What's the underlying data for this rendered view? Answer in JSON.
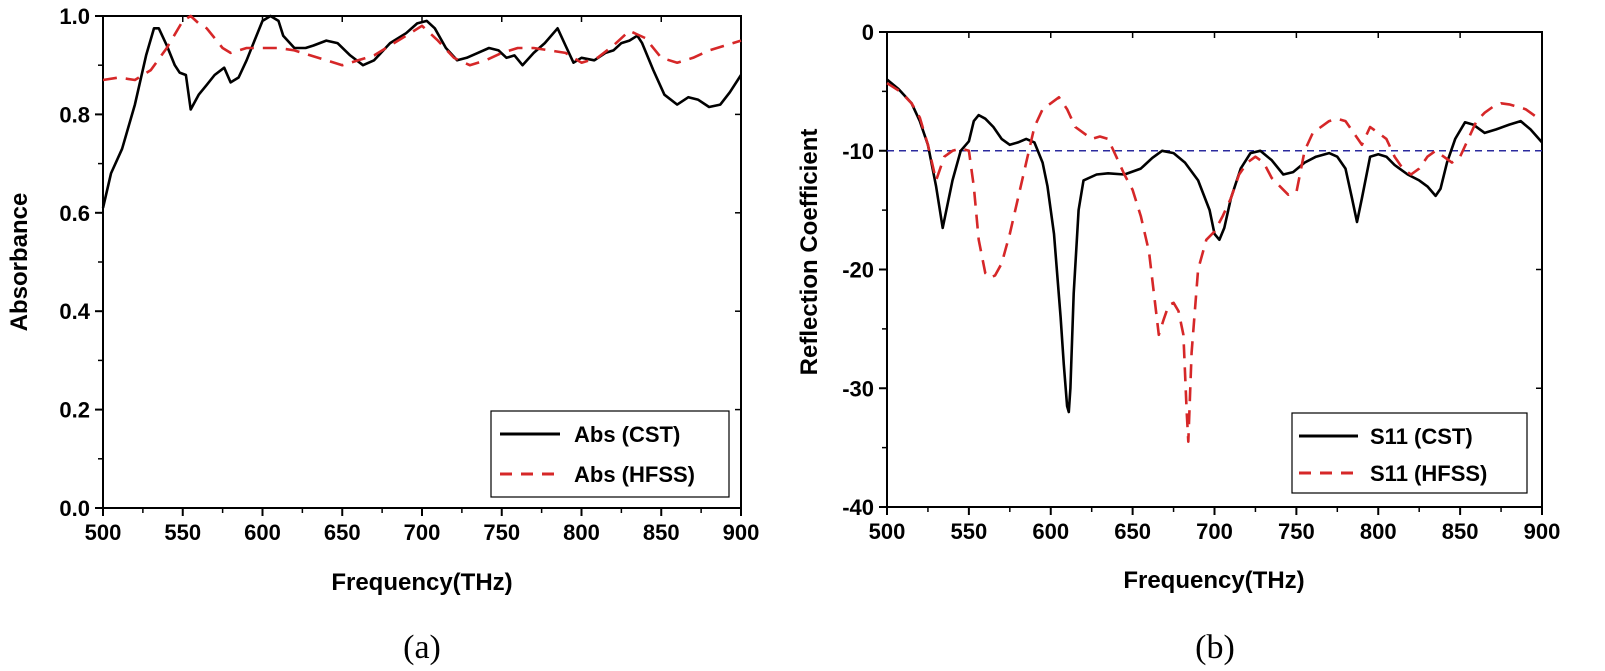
{
  "colors": {
    "cst": "#000000",
    "hfss": "#d62728",
    "threshold": "#2b2b9e"
  },
  "chart_data": [
    {
      "type": "line",
      "caption": "(a)",
      "xlabel": "Frequency(THz)",
      "ylabel": "Absorbance",
      "xlim": [
        500,
        900
      ],
      "ylim": [
        0.0,
        1.0
      ],
      "x_ticks": [
        500,
        550,
        600,
        650,
        700,
        750,
        800,
        850,
        900
      ],
      "x_tick_labels": [
        "500",
        "550",
        "600",
        "650",
        "700",
        "750",
        "800",
        "850",
        "900"
      ],
      "y_ticks": [
        0.0,
        0.2,
        0.4,
        0.6,
        0.8,
        1.0
      ],
      "y_tick_labels": [
        "0.0",
        "0.2",
        "0.4",
        "0.6",
        "0.8",
        "1.0"
      ],
      "legend_position": "bottom-right",
      "series": [
        {
          "name": "Abs (CST)",
          "style": "solid",
          "color_key": "cst",
          "x": [
            500,
            505,
            512,
            520,
            527,
            532,
            535,
            540,
            545,
            548,
            552,
            555,
            560,
            565,
            570,
            576,
            580,
            585,
            590,
            595,
            600,
            605,
            610,
            613,
            620,
            627,
            632,
            640,
            647,
            655,
            663,
            670,
            680,
            690,
            697,
            703,
            708,
            715,
            722,
            728,
            735,
            742,
            748,
            753,
            758,
            763,
            770,
            777,
            785,
            790,
            795,
            800,
            808,
            815,
            820,
            825,
            830,
            835,
            838,
            845,
            852,
            860,
            867,
            873,
            880,
            887,
            893,
            900
          ],
          "y": [
            0.61,
            0.68,
            0.73,
            0.82,
            0.92,
            0.975,
            0.975,
            0.94,
            0.9,
            0.885,
            0.88,
            0.81,
            0.84,
            0.86,
            0.88,
            0.895,
            0.865,
            0.875,
            0.91,
            0.95,
            0.99,
            1.0,
            0.99,
            0.96,
            0.935,
            0.935,
            0.94,
            0.95,
            0.945,
            0.92,
            0.9,
            0.91,
            0.945,
            0.965,
            0.985,
            0.99,
            0.975,
            0.935,
            0.91,
            0.915,
            0.925,
            0.935,
            0.93,
            0.915,
            0.92,
            0.9,
            0.925,
            0.945,
            0.975,
            0.94,
            0.905,
            0.915,
            0.91,
            0.925,
            0.93,
            0.945,
            0.95,
            0.96,
            0.945,
            0.89,
            0.84,
            0.82,
            0.835,
            0.83,
            0.815,
            0.82,
            0.845,
            0.88
          ]
        },
        {
          "name": "Abs (HFSS)",
          "style": "dashed",
          "color_key": "hfss",
          "x": [
            500,
            510,
            520,
            530,
            540,
            550,
            555,
            560,
            565,
            570,
            575,
            580,
            590,
            600,
            610,
            620,
            630,
            640,
            650,
            660,
            670,
            680,
            690,
            700,
            710,
            720,
            730,
            740,
            750,
            760,
            770,
            780,
            790,
            800,
            810,
            820,
            830,
            840,
            850,
            860,
            870,
            880,
            890,
            900
          ],
          "y": [
            0.87,
            0.875,
            0.87,
            0.89,
            0.935,
            0.99,
            1.0,
            0.985,
            0.975,
            0.955,
            0.935,
            0.925,
            0.935,
            0.935,
            0.935,
            0.93,
            0.92,
            0.91,
            0.9,
            0.91,
            0.92,
            0.94,
            0.96,
            0.98,
            0.95,
            0.915,
            0.9,
            0.91,
            0.925,
            0.935,
            0.935,
            0.93,
            0.925,
            0.905,
            0.915,
            0.94,
            0.97,
            0.955,
            0.915,
            0.905,
            0.915,
            0.93,
            0.94,
            0.95
          ]
        }
      ]
    },
    {
      "type": "line",
      "caption": "(b)",
      "xlabel": "Frequency(THz)",
      "ylabel": "Reflection Coefficient",
      "xlim": [
        500,
        900
      ],
      "ylim": [
        -40,
        0
      ],
      "x_ticks": [
        500,
        550,
        600,
        650,
        700,
        750,
        800,
        850,
        900
      ],
      "x_tick_labels": [
        "500",
        "550",
        "600",
        "650",
        "700",
        "750",
        "800",
        "850",
        "900"
      ],
      "y_ticks": [
        -40,
        -30,
        -20,
        -10,
        0
      ],
      "y_tick_labels": [
        "-40",
        "-30",
        "-20",
        "-10",
        "0"
      ],
      "reference_line": {
        "y": -10,
        "style": "dashed",
        "color_key": "threshold"
      },
      "legend_position": "bottom-right",
      "series": [
        {
          "name": "S11 (CST)",
          "style": "solid",
          "color_key": "cst",
          "x": [
            500,
            507,
            515,
            520,
            525,
            530,
            534,
            540,
            545,
            550,
            553,
            556,
            560,
            565,
            570,
            575,
            580,
            585,
            590,
            595,
            598,
            602,
            606,
            608,
            610,
            611,
            612,
            614,
            617,
            620,
            628,
            635,
            645,
            655,
            662,
            668,
            675,
            682,
            690,
            697,
            700,
            703,
            706,
            710,
            716,
            722,
            728,
            735,
            742,
            748,
            755,
            762,
            770,
            775,
            780,
            784,
            787,
            790,
            795,
            800,
            805,
            810,
            818,
            825,
            830,
            835,
            838,
            842,
            847,
            853,
            858,
            865,
            872,
            880,
            887,
            893,
            900
          ],
          "y": [
            -4,
            -4.8,
            -6,
            -7.5,
            -9.5,
            -13,
            -16.5,
            -12.5,
            -10,
            -9.2,
            -7.5,
            -7,
            -7.3,
            -8,
            -9,
            -9.5,
            -9.3,
            -9,
            -9.3,
            -11,
            -13,
            -17,
            -24,
            -28,
            -31.5,
            -32,
            -30,
            -22,
            -15,
            -12.5,
            -12,
            -11.9,
            -12,
            -11.5,
            -10.6,
            -10,
            -10.2,
            -11,
            -12.5,
            -15,
            -17,
            -17.5,
            -16.5,
            -14,
            -11.5,
            -10.2,
            -10,
            -10.8,
            -12,
            -11.8,
            -11,
            -10.5,
            -10.2,
            -10.5,
            -11.5,
            -14,
            -16,
            -14,
            -10.5,
            -10.3,
            -10.5,
            -11.2,
            -12,
            -12.5,
            -13,
            -13.8,
            -13.2,
            -11,
            -9,
            -7.6,
            -7.8,
            -8.5,
            -8.2,
            -7.8,
            -7.5,
            -8.2,
            -9.3
          ]
        },
        {
          "name": "S11 (HFSS)",
          "style": "dashed",
          "color_key": "hfss",
          "x": [
            500,
            508,
            515,
            520,
            525,
            530,
            535,
            540,
            545,
            550,
            553,
            556,
            560,
            563,
            566,
            570,
            575,
            580,
            585,
            590,
            595,
            600,
            605,
            610,
            615,
            620,
            625,
            630,
            635,
            640,
            645,
            650,
            655,
            660,
            663,
            666,
            669,
            672,
            675,
            678,
            681,
            683,
            684,
            686,
            690,
            695,
            700,
            705,
            710,
            715,
            720,
            725,
            730,
            735,
            740,
            745,
            750,
            755,
            760,
            765,
            770,
            775,
            780,
            785,
            790,
            795,
            800,
            805,
            810,
            815,
            820,
            825,
            830,
            835,
            840,
            845,
            850,
            855,
            860,
            865,
            870,
            875,
            880,
            885,
            890,
            895,
            900
          ],
          "y": [
            -4.3,
            -5,
            -6,
            -7.2,
            -9.5,
            -12.5,
            -10.5,
            -10,
            -9.8,
            -10,
            -13,
            -17.5,
            -20.3,
            -20.7,
            -20.5,
            -19.5,
            -17,
            -14,
            -11,
            -8,
            -6.5,
            -6,
            -5.5,
            -6.5,
            -8,
            -8.5,
            -9,
            -8.8,
            -9,
            -10.5,
            -12,
            -13.3,
            -15.5,
            -18.5,
            -22,
            -25.5,
            -24.2,
            -23,
            -22.8,
            -23.5,
            -25.5,
            -32,
            -34.5,
            -27,
            -20,
            -17.5,
            -16.8,
            -15.5,
            -14,
            -12,
            -11,
            -10.5,
            -11,
            -12.3,
            -13,
            -13.7,
            -13.5,
            -10,
            -8.5,
            -8,
            -7.5,
            -7.3,
            -7.5,
            -8.5,
            -9.5,
            -8,
            -8.5,
            -9,
            -10.5,
            -11.5,
            -12,
            -11.5,
            -10.5,
            -10,
            -10.5,
            -11,
            -10.5,
            -9,
            -7.5,
            -6.8,
            -6.3,
            -6,
            -6.1,
            -6.3,
            -6.5,
            -7,
            -7.5
          ]
        }
      ]
    }
  ]
}
